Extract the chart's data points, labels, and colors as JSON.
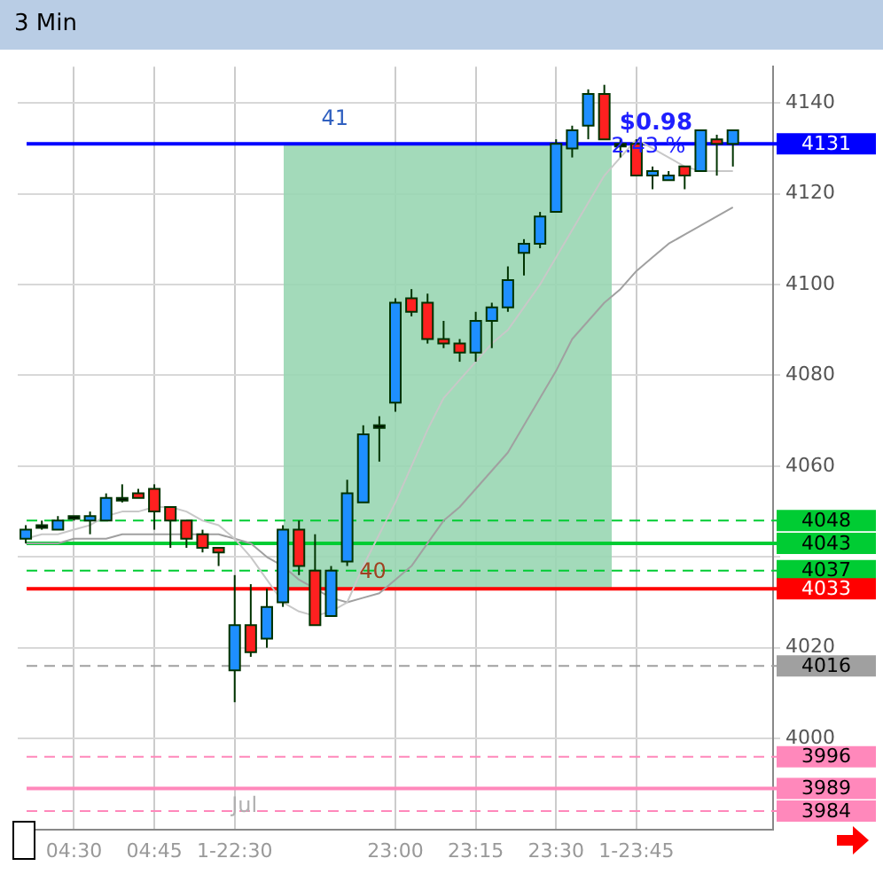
{
  "chart_data": {
    "type": "candlestick",
    "title": "3 Min",
    "categories": [
      null,
      null,
      null,
      "04:30",
      null,
      null,
      null,
      null,
      "04:45",
      null,
      null,
      null,
      null,
      "1-22:30",
      null,
      null,
      null,
      null,
      null,
      null,
      null,
      null,
      null,
      "23:00",
      null,
      null,
      null,
      null,
      "23:15",
      null,
      null,
      null,
      null,
      "23:30",
      null,
      null,
      null,
      null,
      "1-23:45",
      null,
      null,
      null,
      null,
      null,
      null,
      null,
      null
    ],
    "ohlc": [
      [
        4044,
        4047,
        4043,
        4046
      ],
      [
        4047,
        4048,
        4046,
        4047
      ],
      [
        4046,
        4049,
        4046,
        4048
      ],
      [
        4049,
        4049,
        4048,
        4049
      ],
      [
        4048,
        4050,
        4045,
        4049
      ],
      [
        4048,
        4054,
        4048,
        4053
      ],
      [
        4053,
        4056,
        4052,
        4053
      ],
      [
        4054,
        4055,
        4053,
        4053
      ],
      [
        4055,
        4056,
        4046,
        4050
      ],
      [
        4051,
        4051,
        4042,
        4048
      ],
      [
        4048,
        4048,
        4042,
        4044
      ],
      [
        4045,
        4046,
        4041,
        4042
      ],
      [
        4042,
        4042,
        4038,
        4041
      ],
      [
        4015,
        4036,
        4008,
        4025
      ],
      [
        4025,
        4034,
        4018,
        4019
      ],
      [
        4022,
        4033,
        4020,
        4029
      ],
      [
        4030,
        4047,
        4029,
        4046
      ],
      [
        4046,
        4048,
        4036,
        4038
      ],
      [
        4037,
        4045,
        4025,
        4025
      ],
      [
        4027,
        4038,
        4027,
        4037
      ],
      [
        4039,
        4057,
        4038,
        4054
      ],
      [
        4052,
        4069,
        4052,
        4067
      ],
      [
        4069,
        4071,
        4061,
        4069
      ],
      [
        4074,
        4097,
        4072,
        4096
      ],
      [
        4097,
        4099,
        4093,
        4094
      ],
      [
        4096,
        4098,
        4087,
        4088
      ],
      [
        4088,
        4092,
        4086,
        4087
      ],
      [
        4087,
        4088,
        4083,
        4085
      ],
      [
        4085,
        4094,
        4083,
        4092
      ],
      [
        4092,
        4096,
        4086,
        4095
      ],
      [
        4095,
        4104,
        4094,
        4101
      ],
      [
        4107,
        4110,
        4102,
        4109
      ],
      [
        4109,
        4116,
        4108,
        4115
      ],
      [
        4116,
        4132,
        4116,
        4131
      ],
      [
        4130,
        4135,
        4128,
        4134
      ],
      [
        4135,
        4143,
        4132,
        4142
      ],
      [
        4142,
        4144,
        4132,
        4132
      ],
      [
        4131,
        4132,
        4128,
        4131
      ],
      [
        4131,
        4132,
        4124,
        4124
      ],
      [
        4124,
        4126,
        4121,
        4125
      ],
      [
        4123,
        4125,
        4123,
        4124
      ],
      [
        4126,
        4126,
        4121,
        4124
      ],
      [
        4125,
        4134,
        4125,
        4134
      ],
      [
        4132,
        4133,
        4124,
        4131
      ],
      [
        4131,
        4134,
        4126,
        4134
      ],
      null,
      null
    ],
    "series": [
      {
        "type": "line",
        "color": "#c8c8c8",
        "values": [
          4044,
          4045,
          4045,
          4046,
          4047,
          4049,
          4050,
          4050,
          4051,
          4051,
          4050,
          4048,
          4047,
          4044,
          4040,
          4035,
          4030,
          4028,
          4027,
          4028,
          4030,
          4038,
          4045,
          4052,
          4060,
          4068,
          4075,
          4079,
          4083,
          4087,
          4090,
          4095,
          4100,
          4106,
          4112,
          4118,
          4124,
          4128,
          4132,
          4130,
          4128,
          4126,
          4125,
          4125,
          4125,
          null,
          null
        ]
      },
      {
        "type": "line",
        "color": "#a0a0a0",
        "values": [
          4043,
          4043,
          4043,
          4044,
          4044,
          4044,
          4045,
          4045,
          4045,
          4045,
          4045,
          4045,
          4045,
          4044,
          4043,
          4040,
          4038,
          4035,
          4033,
          4031,
          4030,
          4031,
          4032,
          4035,
          4038,
          4043,
          4048,
          4051,
          4055,
          4059,
          4063,
          4069,
          4075,
          4081,
          4088,
          4092,
          4096,
          4099,
          4103,
          4106,
          4109,
          4111,
          4113,
          4115,
          4117,
          null,
          null
        ]
      }
    ],
    "ylim": [
      3980,
      4148
    ],
    "yticks": [
      4000,
      4020,
      {
        "value": 4040,
        "label": null
      },
      4060,
      4080,
      4100,
      4120,
      4140
    ],
    "grid": true,
    "legend": false,
    "bands": [
      {
        "axis": "y",
        "from": 4033,
        "to": 4131,
        "color": "#99d6b3"
      }
    ],
    "ref_lines": [
      {
        "axis": "y",
        "value": 4131,
        "label": "4131",
        "color": "#0000ff",
        "line_style": "solid"
      },
      {
        "axis": "y",
        "value": 4048,
        "label": "4048",
        "color": "#00cc33",
        "line_style": "dashed"
      },
      {
        "axis": "y",
        "value": 4043,
        "label": "4043",
        "color": "#00cc33",
        "line_style": "solid"
      },
      {
        "axis": "y",
        "value": 4037,
        "label": "4037",
        "color": "#00cc33",
        "line_style": "dashed"
      },
      {
        "axis": "y",
        "value": 4033,
        "label": "4033",
        "color": "#ff0000",
        "line_style": "solid"
      },
      {
        "axis": "y",
        "value": 4016,
        "label": "4016",
        "color": "#a0a0a0",
        "line_style": "dashed"
      },
      {
        "axis": "y",
        "value": 3996,
        "label": "3996",
        "color": "#ff88bb",
        "line_style": "dashed"
      },
      {
        "axis": "y",
        "value": 3989,
        "label": "3989",
        "color": "#ff88bb",
        "line_style": "solid"
      },
      {
        "axis": "y",
        "value": 3984,
        "label": "3984",
        "color": "#ff88bb",
        "line_style": "dashed"
      }
    ],
    "annotations": [
      {
        "text": "41",
        "y": 4131
      },
      {
        "text": "40",
        "y": 4033
      },
      "$0.98",
      "2.43 %",
      "Jul"
    ]
  }
}
